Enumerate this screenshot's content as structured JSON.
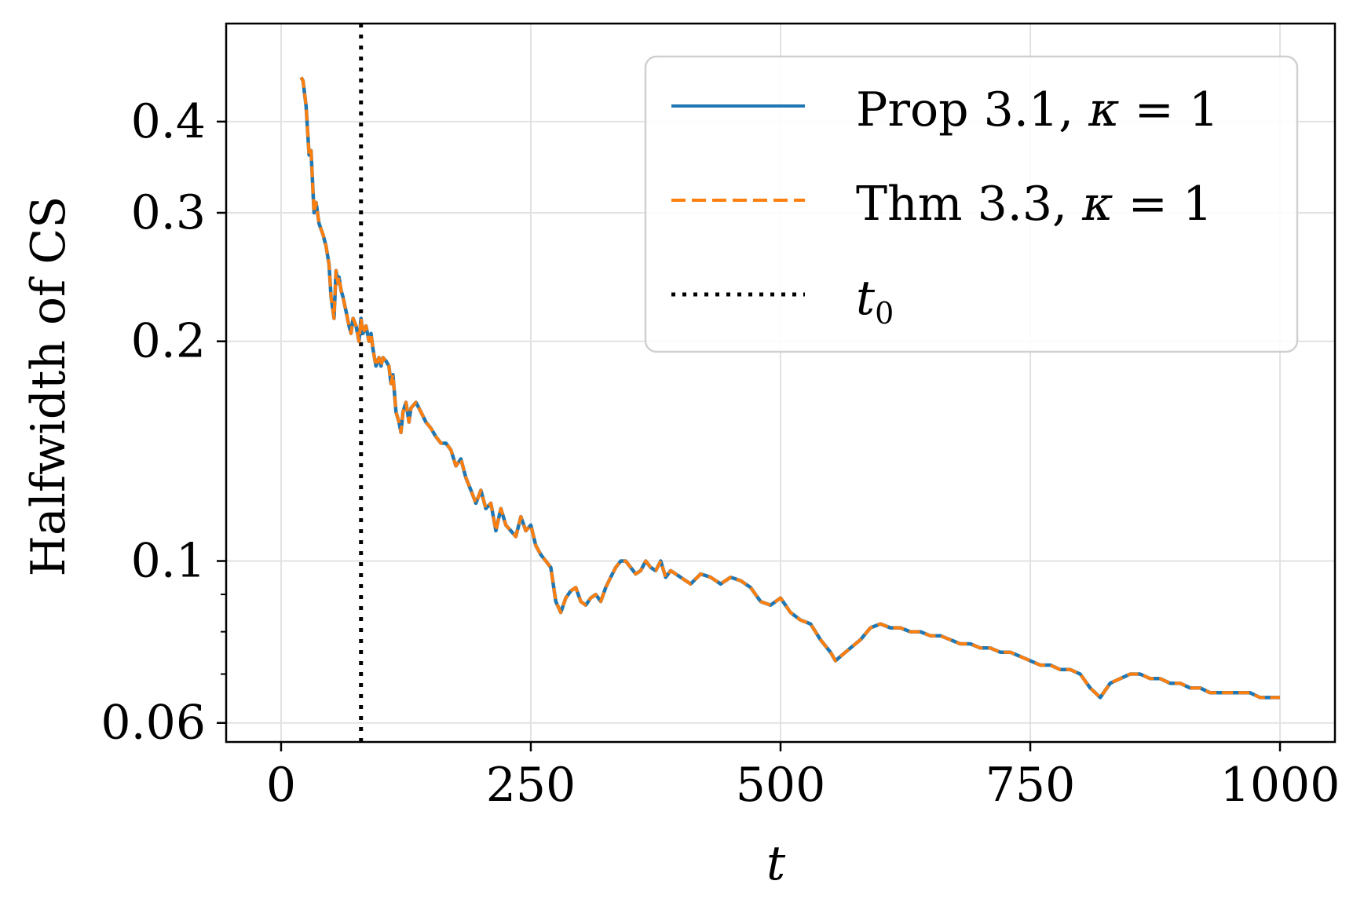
{
  "chart_data": {
    "type": "line",
    "xlabel": "t",
    "ylabel": "Halfwidth of CS",
    "x_scale": "linear",
    "y_scale": "log",
    "xlim": [
      -55,
      1055
    ],
    "ylim": [
      0.0565,
      0.545
    ],
    "xticks": [
      0,
      250,
      500,
      750,
      1000
    ],
    "xtick_labels": [
      "0",
      "250",
      "500",
      "750",
      "1000"
    ],
    "yticks": [
      0.06,
      0.1,
      0.2,
      0.3,
      0.4
    ],
    "ytick_labels": [
      "0.06",
      "0.1",
      "0.2",
      "0.3",
      "0.4"
    ],
    "y_minor_ticks": [
      0.07,
      0.08,
      0.09
    ],
    "grid": true,
    "legend_position": "top-right",
    "vline": {
      "x": 80,
      "label_main": "t",
      "label_sub": "0",
      "color": "#000000",
      "style": "dotted"
    },
    "series": [
      {
        "name_main": "Prop 3.1, ",
        "name_greek": "κ",
        "name_tail": " = 1",
        "color": "#1f77b4",
        "style": "solid",
        "x": [
          20,
          22,
          25,
          28,
          30,
          33,
          35,
          38,
          40,
          42,
          45,
          48,
          50,
          53,
          55,
          57,
          58,
          60,
          62,
          65,
          68,
          70,
          72,
          75,
          78,
          80,
          82,
          85,
          88,
          90,
          92,
          95,
          98,
          100,
          102,
          105,
          108,
          110,
          112,
          115,
          118,
          120,
          122,
          125,
          128,
          130,
          135,
          140,
          145,
          150,
          155,
          160,
          165,
          170,
          175,
          180,
          185,
          190,
          195,
          200,
          205,
          210,
          215,
          220,
          225,
          230,
          235,
          240,
          245,
          250,
          255,
          260,
          265,
          270,
          275,
          280,
          285,
          290,
          295,
          300,
          305,
          310,
          315,
          320,
          325,
          330,
          335,
          340,
          345,
          350,
          355,
          360,
          365,
          370,
          375,
          380,
          385,
          390,
          395,
          400,
          410,
          420,
          430,
          440,
          450,
          460,
          470,
          480,
          490,
          500,
          510,
          520,
          530,
          540,
          550,
          555,
          560,
          570,
          580,
          590,
          600,
          610,
          620,
          630,
          640,
          650,
          660,
          670,
          680,
          690,
          700,
          710,
          720,
          730,
          740,
          750,
          760,
          770,
          780,
          790,
          800,
          810,
          815,
          820,
          830,
          840,
          850,
          860,
          870,
          880,
          890,
          900,
          910,
          920,
          930,
          940,
          950,
          960,
          970,
          980,
          990,
          1000
        ],
        "values": [
          0.46,
          0.455,
          0.42,
          0.36,
          0.365,
          0.3,
          0.31,
          0.29,
          0.285,
          0.28,
          0.27,
          0.255,
          0.23,
          0.215,
          0.25,
          0.24,
          0.245,
          0.235,
          0.23,
          0.22,
          0.21,
          0.205,
          0.215,
          0.21,
          0.2,
          0.215,
          0.205,
          0.21,
          0.2,
          0.205,
          0.195,
          0.185,
          0.19,
          0.185,
          0.19,
          0.188,
          0.185,
          0.175,
          0.18,
          0.16,
          0.155,
          0.15,
          0.16,
          0.165,
          0.155,
          0.162,
          0.165,
          0.16,
          0.155,
          0.152,
          0.148,
          0.145,
          0.145,
          0.142,
          0.135,
          0.138,
          0.13,
          0.125,
          0.12,
          0.125,
          0.118,
          0.12,
          0.11,
          0.118,
          0.112,
          0.11,
          0.108,
          0.115,
          0.11,
          0.112,
          0.105,
          0.102,
          0.1,
          0.098,
          0.088,
          0.085,
          0.089,
          0.091,
          0.092,
          0.088,
          0.087,
          0.089,
          0.09,
          0.088,
          0.092,
          0.095,
          0.098,
          0.1,
          0.1,
          0.098,
          0.096,
          0.097,
          0.1,
          0.098,
          0.097,
          0.1,
          0.095,
          0.097,
          0.096,
          0.095,
          0.093,
          0.096,
          0.095,
          0.093,
          0.095,
          0.094,
          0.092,
          0.088,
          0.087,
          0.089,
          0.085,
          0.083,
          0.082,
          0.078,
          0.075,
          0.073,
          0.074,
          0.076,
          0.078,
          0.081,
          0.082,
          0.081,
          0.081,
          0.08,
          0.08,
          0.079,
          0.079,
          0.078,
          0.077,
          0.077,
          0.076,
          0.076,
          0.075,
          0.075,
          0.074,
          0.073,
          0.072,
          0.072,
          0.071,
          0.071,
          0.07,
          0.067,
          0.066,
          0.065,
          0.068,
          0.069,
          0.07,
          0.07,
          0.069,
          0.069,
          0.068,
          0.068,
          0.067,
          0.067,
          0.066,
          0.066,
          0.066,
          0.066,
          0.066,
          0.065,
          0.065,
          0.065
        ]
      },
      {
        "name_main": "Thm 3.3, ",
        "name_greek": "κ",
        "name_tail": " = 1",
        "color": "#ff7f0e",
        "style": "dashed",
        "same_as_series": 0
      }
    ]
  }
}
